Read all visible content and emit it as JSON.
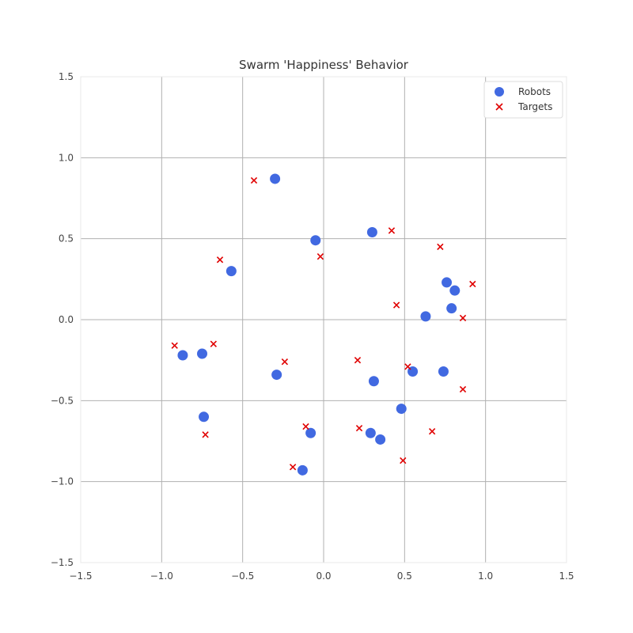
{
  "chart_data": {
    "type": "scatter",
    "title": "Swarm 'Happiness' Behavior",
    "xlabel": "",
    "ylabel": "",
    "xlim": [
      -1.5,
      1.5
    ],
    "ylim": [
      -1.5,
      1.5
    ],
    "xticks": [
      "−1.5",
      "−1.0",
      "−0.5",
      "0.0",
      "0.5",
      "1.0",
      "1.5"
    ],
    "yticks": [
      "−1.5",
      "−1.0",
      "−0.5",
      "0.0",
      "0.5",
      "1.0",
      "1.5"
    ],
    "grid": true,
    "legend": "top-right",
    "series": [
      {
        "name": "Robots",
        "marker": "circle",
        "color": "#4169e1",
        "points": [
          [
            -0.3,
            0.87
          ],
          [
            -0.05,
            0.49
          ],
          [
            0.3,
            0.54
          ],
          [
            -0.57,
            0.3
          ],
          [
            0.76,
            0.23
          ],
          [
            0.81,
            0.18
          ],
          [
            0.79,
            0.07
          ],
          [
            0.63,
            0.02
          ],
          [
            -0.87,
            -0.22
          ],
          [
            -0.75,
            -0.21
          ],
          [
            -0.29,
            -0.34
          ],
          [
            0.31,
            -0.38
          ],
          [
            0.55,
            -0.32
          ],
          [
            0.74,
            -0.32
          ],
          [
            0.48,
            -0.55
          ],
          [
            -0.74,
            -0.6
          ],
          [
            -0.08,
            -0.7
          ],
          [
            0.29,
            -0.7
          ],
          [
            0.35,
            -0.74
          ],
          [
            -0.13,
            -0.93
          ]
        ]
      },
      {
        "name": "Targets",
        "marker": "x",
        "color": "#e00000",
        "points": [
          [
            -0.43,
            0.86
          ],
          [
            0.42,
            0.55
          ],
          [
            0.72,
            0.45
          ],
          [
            -0.64,
            0.37
          ],
          [
            -0.02,
            0.39
          ],
          [
            0.92,
            0.22
          ],
          [
            0.45,
            0.09
          ],
          [
            0.86,
            0.01
          ],
          [
            -0.92,
            -0.16
          ],
          [
            -0.68,
            -0.15
          ],
          [
            -0.24,
            -0.26
          ],
          [
            0.21,
            -0.25
          ],
          [
            0.52,
            -0.29
          ],
          [
            0.86,
            -0.43
          ],
          [
            -0.11,
            -0.66
          ],
          [
            0.22,
            -0.67
          ],
          [
            0.67,
            -0.69
          ],
          [
            -0.73,
            -0.71
          ],
          [
            -0.19,
            -0.91
          ],
          [
            0.49,
            -0.87
          ]
        ]
      }
    ]
  }
}
